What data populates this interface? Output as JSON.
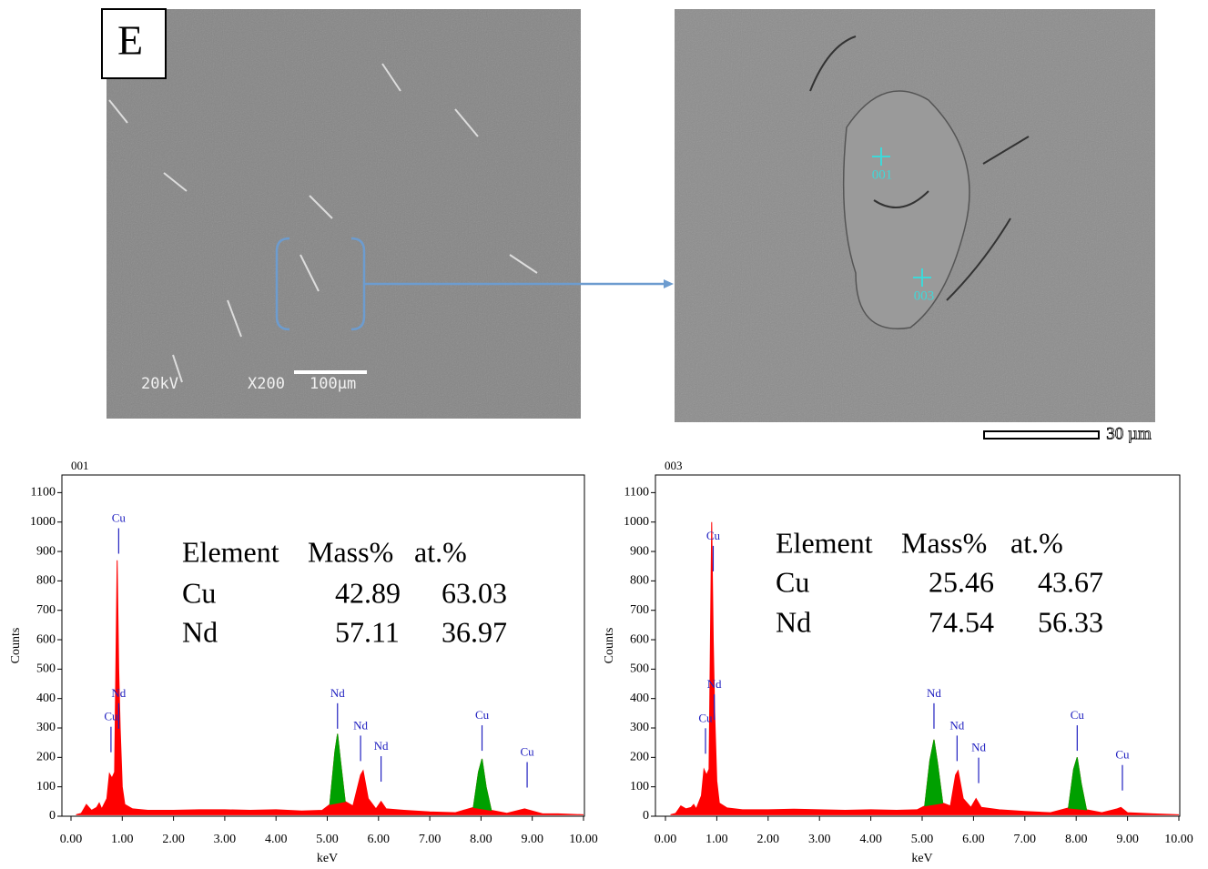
{
  "panel_label": "E",
  "sem_overview": {
    "voltage": "20kV",
    "magnification": "X200",
    "scale_bar": "100µm"
  },
  "sem_detail": {
    "points": [
      "001",
      "003"
    ],
    "scale_bar": "30 µm"
  },
  "chart_data": [
    {
      "type": "area",
      "title": "001",
      "x_label": "keV",
      "y_label": "Counts",
      "x": [
        0.1,
        0.2,
        0.3,
        0.4,
        0.5,
        0.55,
        0.6,
        0.7,
        0.75,
        0.8,
        0.85,
        0.9,
        0.93,
        0.96,
        1.0,
        1.05,
        1.2,
        1.5,
        2.0,
        2.5,
        3.0,
        3.5,
        4.0,
        4.5,
        4.9,
        5.05,
        5.15,
        5.2,
        5.25,
        5.35,
        5.5,
        5.65,
        5.7,
        5.8,
        5.95,
        6.05,
        6.15,
        6.5,
        7.0,
        7.5,
        7.85,
        7.95,
        8.02,
        8.1,
        8.2,
        8.5,
        8.85,
        8.95,
        9.2,
        9.5,
        10.0
      ],
      "series": [
        {
          "color": "#ff0000",
          "values": [
            5,
            10,
            40,
            20,
            30,
            45,
            25,
            60,
            145,
            130,
            150,
            870,
            500,
            300,
            100,
            40,
            25,
            20,
            20,
            22,
            22,
            20,
            22,
            18,
            20,
            40,
            220,
            280,
            200,
            50,
            35,
            140,
            155,
            60,
            25,
            50,
            25,
            20,
            15,
            12,
            30,
            150,
            195,
            100,
            20,
            10,
            25,
            20,
            8,
            8,
            5
          ]
        },
        {
          "color": "#00a000",
          "values": [
            null,
            null,
            null,
            null,
            null,
            null,
            null,
            null,
            null,
            null,
            null,
            null,
            null,
            null,
            null,
            null,
            null,
            null,
            null,
            null,
            null,
            null,
            null,
            null,
            null,
            40,
            220,
            280,
            200,
            50,
            null,
            null,
            null,
            null,
            null,
            null,
            null,
            null,
            null,
            null,
            30,
            150,
            195,
            100,
            20,
            null,
            null,
            null,
            null,
            null,
            null
          ]
        }
      ],
      "xlim": [
        0,
        10
      ],
      "ylim": [
        0,
        1160
      ],
      "xticks": [
        {
          "value": 0,
          "label": "0.00"
        },
        {
          "value": 1,
          "label": "1.00"
        },
        {
          "value": 2,
          "label": "2.00"
        },
        {
          "value": 3,
          "label": "3.00"
        },
        {
          "value": 4,
          "label": "4.00"
        },
        {
          "value": 5,
          "label": "5.00"
        },
        {
          "value": 6,
          "label": "6.00"
        },
        {
          "value": 7,
          "label": "7.00"
        },
        {
          "value": 8,
          "label": "8.00"
        },
        {
          "value": 9,
          "label": "9.00"
        },
        {
          "value": 10,
          "label": "10.00"
        }
      ],
      "yticks": [
        0,
        100,
        200,
        300,
        400,
        500,
        600,
        700,
        800,
        900,
        1000,
        1100
      ],
      "annotations": [
        {
          "text": "Cu",
          "x": 0.93,
          "y": 1010
        },
        {
          "text": "Nd",
          "x": 0.93,
          "y": 415
        },
        {
          "text": "Cu",
          "x": 0.78,
          "y": 335
        },
        {
          "text": "Nd",
          "x": 5.2,
          "y": 415
        },
        {
          "text": "Nd",
          "x": 5.65,
          "y": 305
        },
        {
          "text": "Nd",
          "x": 6.05,
          "y": 235
        },
        {
          "text": "Cu",
          "x": 8.02,
          "y": 340
        },
        {
          "text": "Cu",
          "x": 8.9,
          "y": 215
        }
      ],
      "table": {
        "header": [
          "Element",
          "Mass%",
          "at.%"
        ],
        "rows": [
          [
            "Cu",
            42.89,
            63.03
          ],
          [
            "Nd",
            57.11,
            36.97
          ]
        ]
      }
    },
    {
      "type": "area",
      "title": "003",
      "x_label": "keV",
      "y_label": "Counts",
      "x": [
        0.1,
        0.2,
        0.3,
        0.4,
        0.5,
        0.55,
        0.6,
        0.7,
        0.75,
        0.8,
        0.85,
        0.9,
        0.93,
        0.96,
        1.0,
        1.05,
        1.2,
        1.5,
        2.0,
        2.5,
        3.0,
        3.5,
        4.0,
        4.5,
        4.9,
        5.05,
        5.15,
        5.23,
        5.3,
        5.4,
        5.55,
        5.65,
        5.7,
        5.8,
        5.95,
        6.05,
        6.15,
        6.5,
        7.0,
        7.5,
        7.85,
        7.95,
        8.02,
        8.1,
        8.2,
        8.5,
        8.8,
        8.87,
        9.0,
        9.5,
        10.0
      ],
      "series": [
        {
          "color": "#ff0000",
          "values": [
            5,
            10,
            35,
            25,
            30,
            40,
            25,
            70,
            160,
            140,
            160,
            1000,
            600,
            350,
            120,
            45,
            28,
            22,
            22,
            24,
            22,
            20,
            22,
            20,
            22,
            35,
            190,
            260,
            180,
            45,
            35,
            140,
            155,
            60,
            30,
            60,
            30,
            22,
            16,
            12,
            28,
            160,
            200,
            110,
            22,
            12,
            25,
            30,
            12,
            8,
            5
          ]
        },
        {
          "color": "#00a000",
          "values": [
            null,
            null,
            null,
            null,
            null,
            null,
            null,
            null,
            null,
            null,
            null,
            null,
            null,
            null,
            null,
            null,
            null,
            null,
            null,
            null,
            null,
            null,
            null,
            null,
            null,
            35,
            190,
            260,
            180,
            45,
            null,
            null,
            null,
            null,
            null,
            null,
            null,
            null,
            null,
            null,
            28,
            160,
            200,
            110,
            22,
            null,
            null,
            null,
            null,
            null,
            null
          ]
        }
      ],
      "xlim": [
        0,
        10
      ],
      "ylim": [
        0,
        1160
      ],
      "xticks": [
        {
          "value": 0,
          "label": "0.00"
        },
        {
          "value": 1,
          "label": "1.00"
        },
        {
          "value": 2,
          "label": "2.00"
        },
        {
          "value": 3,
          "label": "3.00"
        },
        {
          "value": 4,
          "label": "4.00"
        },
        {
          "value": 5,
          "label": "5.00"
        },
        {
          "value": 6,
          "label": "6.00"
        },
        {
          "value": 7,
          "label": "7.00"
        },
        {
          "value": 8,
          "label": "8.00"
        },
        {
          "value": 9,
          "label": "9.00"
        },
        {
          "value": 10,
          "label": "10.00"
        }
      ],
      "yticks": [
        0,
        100,
        200,
        300,
        400,
        500,
        600,
        700,
        800,
        900,
        1000,
        1100
      ],
      "annotations": [
        {
          "text": "Cu",
          "x": 0.93,
          "y": 950
        },
        {
          "text": "Nd",
          "x": 0.95,
          "y": 445
        },
        {
          "text": "Cu",
          "x": 0.78,
          "y": 330
        },
        {
          "text": "Nd",
          "x": 5.23,
          "y": 415
        },
        {
          "text": "Nd",
          "x": 5.68,
          "y": 305
        },
        {
          "text": "Nd",
          "x": 6.1,
          "y": 230
        },
        {
          "text": "Cu",
          "x": 8.02,
          "y": 340
        },
        {
          "text": "Cu",
          "x": 8.9,
          "y": 205
        }
      ],
      "table": {
        "header": [
          "Element",
          "Mass%",
          "at.%"
        ],
        "rows": [
          [
            "Cu",
            25.46,
            43.67
          ],
          [
            "Nd",
            74.54,
            56.33
          ]
        ]
      }
    }
  ]
}
